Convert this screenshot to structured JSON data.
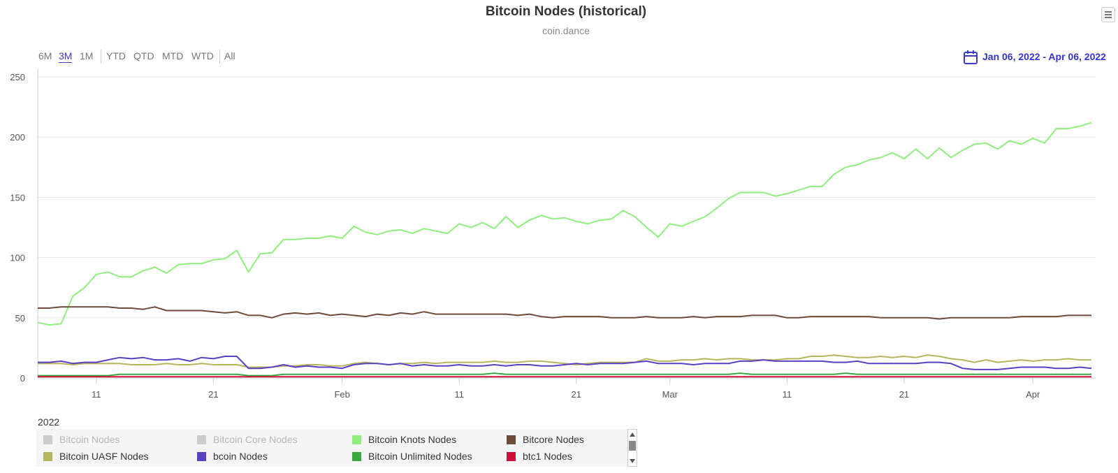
{
  "header": {
    "title": "Bitcoin Nodes (historical)",
    "subtitle": "coin.dance"
  },
  "range_selector": {
    "buttons": [
      {
        "label": "6M",
        "active": false
      },
      {
        "label": "3M",
        "active": true
      },
      {
        "label": "1M",
        "active": false
      },
      {
        "label": "YTD",
        "active": false
      },
      {
        "label": "QTD",
        "active": false
      },
      {
        "label": "MTD",
        "active": false
      },
      {
        "label": "WTD",
        "active": false
      },
      {
        "label": "All",
        "active": false
      }
    ],
    "date_range": "Jan 06, 2022 - Apr 06, 2022",
    "date_icon": "calendar-icon"
  },
  "year_label": "2022",
  "menu_icon": "hamburger-menu-icon",
  "legend": {
    "items": [
      {
        "label": "Bitcoin Nodes",
        "color": "#cccccc",
        "hidden": true
      },
      {
        "label": "Bitcoin Core Nodes",
        "color": "#cccccc",
        "hidden": true
      },
      {
        "label": "Bitcoin Knots Nodes",
        "color": "#90ee7e",
        "hidden": false
      },
      {
        "label": "Bitcore Nodes",
        "color": "#6d4a3a",
        "hidden": false
      },
      {
        "label": "Bitcoin UASF Nodes",
        "color": "#b5b55e",
        "hidden": false
      },
      {
        "label": "bcoin Nodes",
        "color": "#5b3fc4",
        "hidden": false
      },
      {
        "label": "Bitcoin Unlimited Nodes",
        "color": "#3aa640",
        "hidden": false
      },
      {
        "label": "btc1 Nodes",
        "color": "#d0103a",
        "hidden": false
      }
    ]
  },
  "chart_data": {
    "type": "line",
    "title": "Bitcoin Nodes (historical)",
    "subtitle": "coin.dance",
    "x_start": "2022-01-06",
    "x_end": "2022-04-06",
    "x_axis_ticks": [
      {
        "date": "2022-01-11",
        "label": "11"
      },
      {
        "date": "2022-01-21",
        "label": "21"
      },
      {
        "date": "2022-02-01",
        "label": "Feb"
      },
      {
        "date": "2022-02-11",
        "label": "11"
      },
      {
        "date": "2022-02-21",
        "label": "21"
      },
      {
        "date": "2022-03-01",
        "label": "Mar"
      },
      {
        "date": "2022-03-11",
        "label": "11"
      },
      {
        "date": "2022-03-21",
        "label": "21"
      },
      {
        "date": "2022-04-01",
        "label": "Apr"
      }
    ],
    "ylim": [
      0,
      250
    ],
    "y_ticks": [
      0,
      50,
      100,
      150,
      200,
      250
    ],
    "grid": "horizontal",
    "legend_position": "bottom-left",
    "series": [
      {
        "name": "Bitcoin Knots Nodes",
        "color": "#90ee7e",
        "values": [
          46,
          44,
          45,
          68,
          75,
          86,
          88,
          84,
          84,
          89,
          92,
          87,
          94,
          95,
          95,
          98,
          99,
          106,
          88,
          103,
          104,
          115,
          115,
          116,
          116,
          118,
          116,
          126,
          121,
          119,
          122,
          123,
          120,
          124,
          122,
          120,
          128,
          125,
          129,
          124,
          134,
          125,
          131,
          135,
          132,
          133,
          130,
          128,
          131,
          132,
          139,
          134,
          125,
          117,
          128,
          126,
          130,
          134,
          141,
          149,
          154,
          154,
          154,
          151,
          153,
          156,
          159,
          159,
          169,
          175,
          177,
          181,
          183,
          187,
          182,
          190,
          182,
          191,
          183,
          189,
          194,
          195,
          190,
          197,
          194,
          199,
          195,
          207,
          207,
          209,
          212
        ]
      },
      {
        "name": "Bitcore Nodes",
        "color": "#6d4a3a",
        "values": [
          58,
          58,
          59,
          59,
          59,
          59,
          59,
          58,
          58,
          57,
          59,
          56,
          56,
          56,
          56,
          55,
          54,
          55,
          52,
          52,
          50,
          53,
          54,
          53,
          54,
          52,
          53,
          52,
          51,
          53,
          52,
          54,
          53,
          55,
          53,
          53,
          53,
          53,
          53,
          53,
          53,
          52,
          53,
          51,
          50,
          51,
          51,
          51,
          51,
          50,
          50,
          50,
          51,
          50,
          50,
          50,
          51,
          50,
          51,
          51,
          51,
          52,
          52,
          52,
          50,
          50,
          51,
          51,
          51,
          51,
          51,
          51,
          50,
          50,
          50,
          50,
          50,
          49,
          50,
          50,
          50,
          50,
          50,
          50,
          51,
          51,
          51,
          51,
          52,
          52,
          52
        ]
      },
      {
        "name": "Bitcoin UASF Nodes",
        "color": "#b5b55e",
        "values": [
          12,
          12,
          12,
          11,
          12,
          12,
          12,
          12,
          11,
          11,
          11,
          12,
          11,
          11,
          12,
          11,
          11,
          11,
          9,
          9,
          9,
          10,
          10,
          11,
          11,
          10,
          10,
          12,
          13,
          12,
          11,
          12,
          12,
          13,
          12,
          13,
          13,
          13,
          13,
          14,
          13,
          13,
          14,
          14,
          13,
          12,
          11,
          12,
          13,
          13,
          13,
          13,
          16,
          14,
          14,
          15,
          15,
          16,
          15,
          16,
          16,
          15,
          15,
          15,
          16,
          16,
          18,
          18,
          19,
          18,
          17,
          17,
          18,
          17,
          18,
          17,
          19,
          18,
          16,
          15,
          13,
          15,
          13,
          14,
          15,
          14,
          15,
          15,
          16,
          15,
          15
        ]
      },
      {
        "name": "bcoin Nodes",
        "color": "#5b3fc4",
        "values": [
          13,
          13,
          14,
          12,
          13,
          13,
          15,
          17,
          16,
          17,
          15,
          15,
          16,
          14,
          17,
          16,
          18,
          18,
          8,
          8,
          9,
          11,
          9,
          10,
          9,
          9,
          8,
          11,
          12,
          12,
          11,
          12,
          10,
          11,
          10,
          10,
          11,
          10,
          10,
          11,
          10,
          11,
          11,
          10,
          10,
          11,
          12,
          11,
          12,
          12,
          12,
          13,
          14,
          12,
          12,
          12,
          11,
          12,
          12,
          12,
          14,
          14,
          15,
          14,
          14,
          14,
          14,
          14,
          13,
          13,
          14,
          12,
          12,
          12,
          12,
          12,
          13,
          13,
          12,
          8,
          7,
          7,
          7,
          8,
          9,
          9,
          9,
          8,
          8,
          9,
          8
        ]
      },
      {
        "name": "Bitcoin Unlimited Nodes",
        "color": "#3aa640",
        "values": [
          2,
          2,
          2,
          2,
          2,
          2,
          2,
          3,
          3,
          3,
          3,
          3,
          3,
          3,
          3,
          3,
          3,
          3,
          2,
          2,
          2,
          3,
          3,
          3,
          3,
          3,
          3,
          3,
          3,
          3,
          3,
          3,
          3,
          3,
          3,
          3,
          3,
          3,
          3,
          4,
          3,
          3,
          3,
          3,
          3,
          3,
          3,
          3,
          3,
          3,
          3,
          3,
          3,
          3,
          3,
          3,
          3,
          3,
          3,
          3,
          4,
          3,
          3,
          3,
          3,
          3,
          3,
          3,
          3,
          4,
          3,
          3,
          3,
          3,
          3,
          3,
          3,
          3,
          3,
          3,
          3,
          3,
          3,
          3,
          3,
          3,
          3,
          3,
          3,
          3,
          3
        ]
      },
      {
        "name": "btc1 Nodes",
        "color": "#d0103a",
        "values": [
          1,
          1,
          1,
          1,
          1,
          1,
          1,
          1,
          1,
          1,
          1,
          1,
          1,
          1,
          1,
          1,
          1,
          1,
          1,
          1,
          1,
          1,
          1,
          1,
          1,
          1,
          1,
          1,
          1,
          1,
          1,
          1,
          1,
          1,
          1,
          1,
          1,
          1,
          1,
          1,
          1,
          1,
          1,
          1,
          1,
          1,
          1,
          1,
          1,
          1,
          1,
          1,
          1,
          1,
          1,
          1,
          1,
          1,
          1,
          1,
          1,
          1,
          1,
          1,
          1,
          1,
          1,
          1,
          1,
          1,
          1,
          1,
          1,
          1,
          1,
          1,
          1,
          1,
          1,
          1,
          1,
          1,
          1,
          1,
          1,
          1,
          1,
          1,
          1,
          1,
          1
        ]
      }
    ]
  }
}
